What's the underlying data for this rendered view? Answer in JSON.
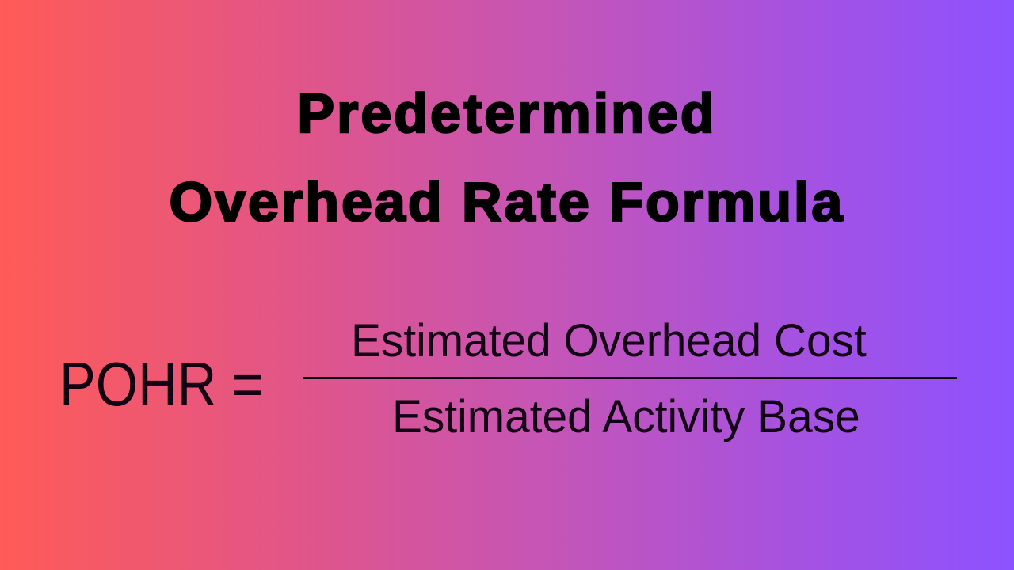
{
  "title": {
    "line1": "Predetermined",
    "line2": "Overhead Rate Formula"
  },
  "formula": {
    "lhs": "POHR =",
    "numerator": "Estimated Overhead Cost",
    "denominator": "Estimated Activity Base"
  },
  "colors": {
    "gradient_start": "#ff5b57",
    "gradient_end": "#8d52ff",
    "text": "#000000"
  }
}
